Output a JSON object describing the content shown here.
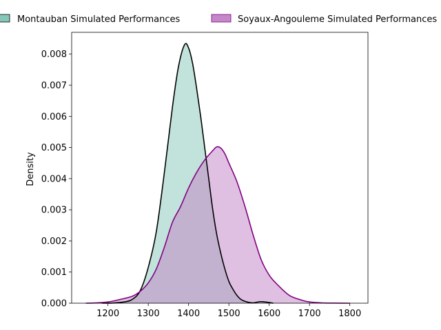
{
  "chart_data": {
    "type": "area",
    "title": "",
    "xlabel": "",
    "ylabel": "Density",
    "xlim": [
      1110,
      1845
    ],
    "ylim": [
      0,
      0.0087
    ],
    "xticks": [
      1200,
      1300,
      1400,
      1500,
      1600,
      1700,
      1800
    ],
    "yticks": [
      0.0,
      0.001,
      0.002,
      0.003,
      0.004,
      0.005,
      0.006,
      0.007,
      0.008
    ],
    "ytick_labels": [
      "0.000",
      "0.001",
      "0.002",
      "0.003",
      "0.004",
      "0.005",
      "0.006",
      "0.007",
      "0.008"
    ],
    "grid": false,
    "legend": "top, outside plot, 2 columns",
    "series": [
      {
        "name": "Montauban Simulated Performances",
        "line_color": "#000000",
        "fill_color": "#67b8a6",
        "fill_opacity": 0.4,
        "x": [
          1185,
          1210,
          1240,
          1260,
          1280,
          1300,
          1320,
          1340,
          1360,
          1375,
          1390,
          1400,
          1410,
          1420,
          1430,
          1440,
          1450,
          1460,
          1470,
          1480,
          1490,
          1500,
          1510,
          1520,
          1530,
          1545,
          1560,
          1580,
          1610
        ],
        "y": [
          0,
          5e-06,
          4e-05,
          0.00012,
          0.0004,
          0.00115,
          0.0023,
          0.0042,
          0.0063,
          0.0076,
          0.0083,
          0.0082,
          0.0077,
          0.0069,
          0.006,
          0.005,
          0.004,
          0.003,
          0.0022,
          0.0016,
          0.0011,
          0.0007,
          0.00045,
          0.00025,
          0.00012,
          4e-05,
          1e-05,
          5e-05,
          0
        ]
      },
      {
        "name": "Soyaux-Angouleme Simulated Performances",
        "line_color": "#800080",
        "fill_color": "#c182c6",
        "fill_opacity": 0.5,
        "x": [
          1145,
          1170,
          1200,
          1230,
          1260,
          1280,
          1300,
          1320,
          1340,
          1360,
          1380,
          1400,
          1420,
          1440,
          1460,
          1470,
          1480,
          1490,
          1500,
          1520,
          1540,
          1560,
          1580,
          1600,
          1620,
          1650,
          1680,
          1700,
          1730,
          1760,
          1800
        ],
        "y": [
          0,
          1e-05,
          4e-05,
          0.00012,
          0.00022,
          0.00038,
          0.00065,
          0.0011,
          0.0018,
          0.0026,
          0.0031,
          0.0037,
          0.0042,
          0.0046,
          0.0049,
          0.00502,
          0.00498,
          0.0048,
          0.0045,
          0.0039,
          0.0031,
          0.0022,
          0.0014,
          0.0009,
          0.0006,
          0.00025,
          0.0001,
          4e-05,
          1e-05,
          3e-06,
          0
        ]
      }
    ]
  }
}
